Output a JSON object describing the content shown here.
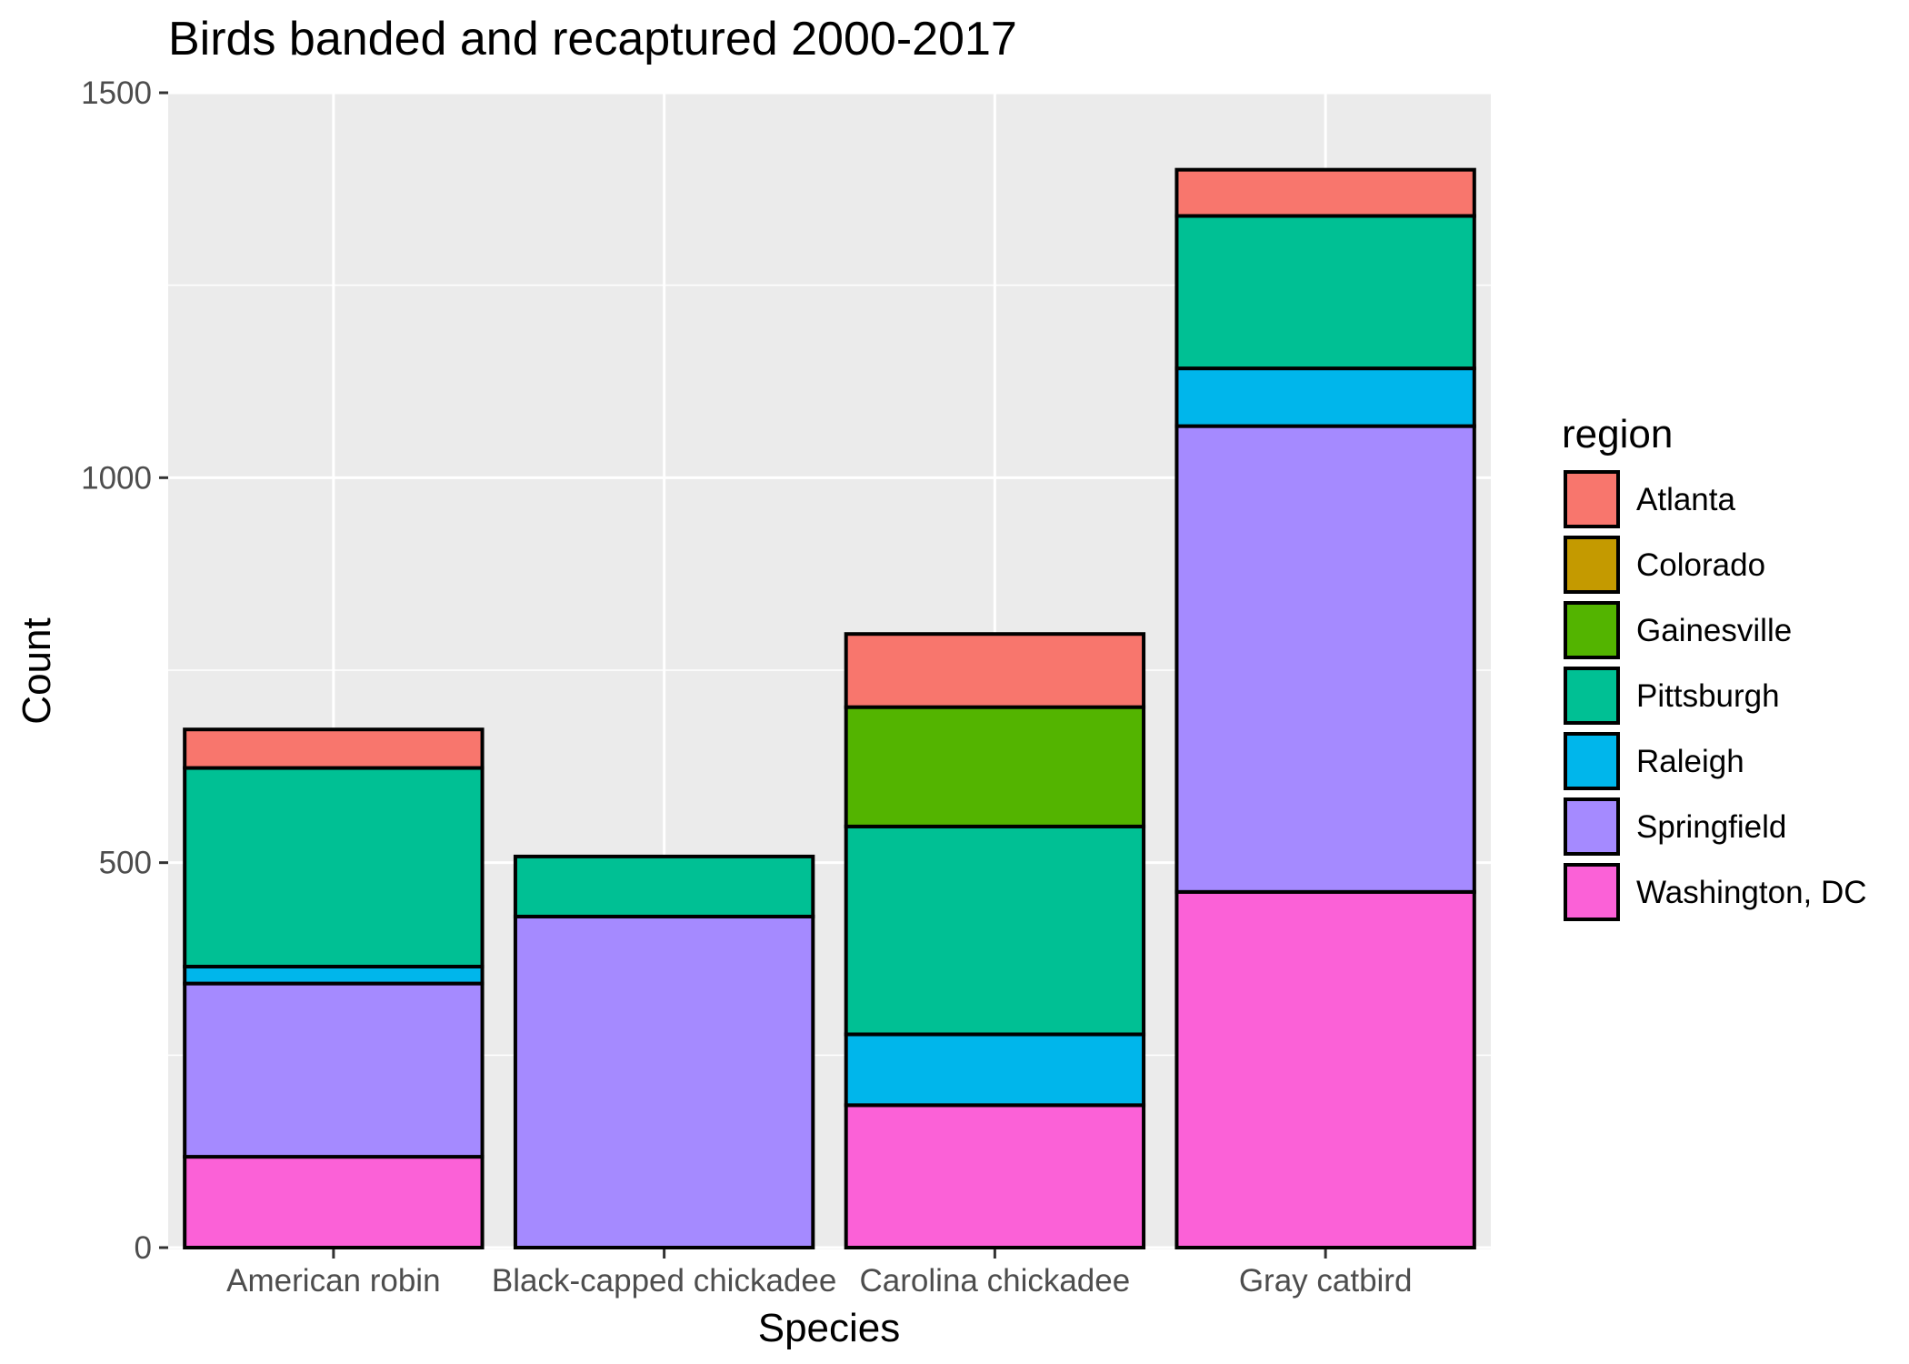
{
  "chart_data": {
    "type": "bar",
    "stacked": true,
    "title": "Birds banded and recaptured 2000-2017",
    "xlabel": "Species",
    "ylabel": "Count",
    "ylim": [
      0,
      1500
    ],
    "yticks": [
      0,
      500,
      1000,
      1500
    ],
    "grid": true,
    "legend_position": "right",
    "legend_title": "region",
    "categories": [
      "American robin",
      "Black-capped chickadee",
      "Carolina chickadee",
      "Gray catbird"
    ],
    "series": [
      {
        "name": "Atlanta",
        "color": "#F8766D",
        "values": [
          50,
          0,
          95,
          60
        ]
      },
      {
        "name": "Colorado",
        "color": "#C49A00",
        "values": [
          0,
          0,
          0,
          0
        ]
      },
      {
        "name": "Gainesville",
        "color": "#53B400",
        "values": [
          0,
          0,
          155,
          0
        ]
      },
      {
        "name": "Pittsburgh",
        "color": "#00C094",
        "values": [
          258,
          78,
          270,
          198
        ]
      },
      {
        "name": "Raleigh",
        "color": "#00B6EB",
        "values": [
          22,
          0,
          92,
          75
        ]
      },
      {
        "name": "Springfield",
        "color": "#A58AFF",
        "values": [
          225,
          430,
          0,
          605
        ]
      },
      {
        "name": "Washington, DC",
        "color": "#FB61D7",
        "values": [
          118,
          0,
          185,
          462
        ]
      }
    ],
    "panel_color": "#EBEBEB",
    "grid_color": "#FFFFFF",
    "bar_outline_color": "#000000"
  }
}
